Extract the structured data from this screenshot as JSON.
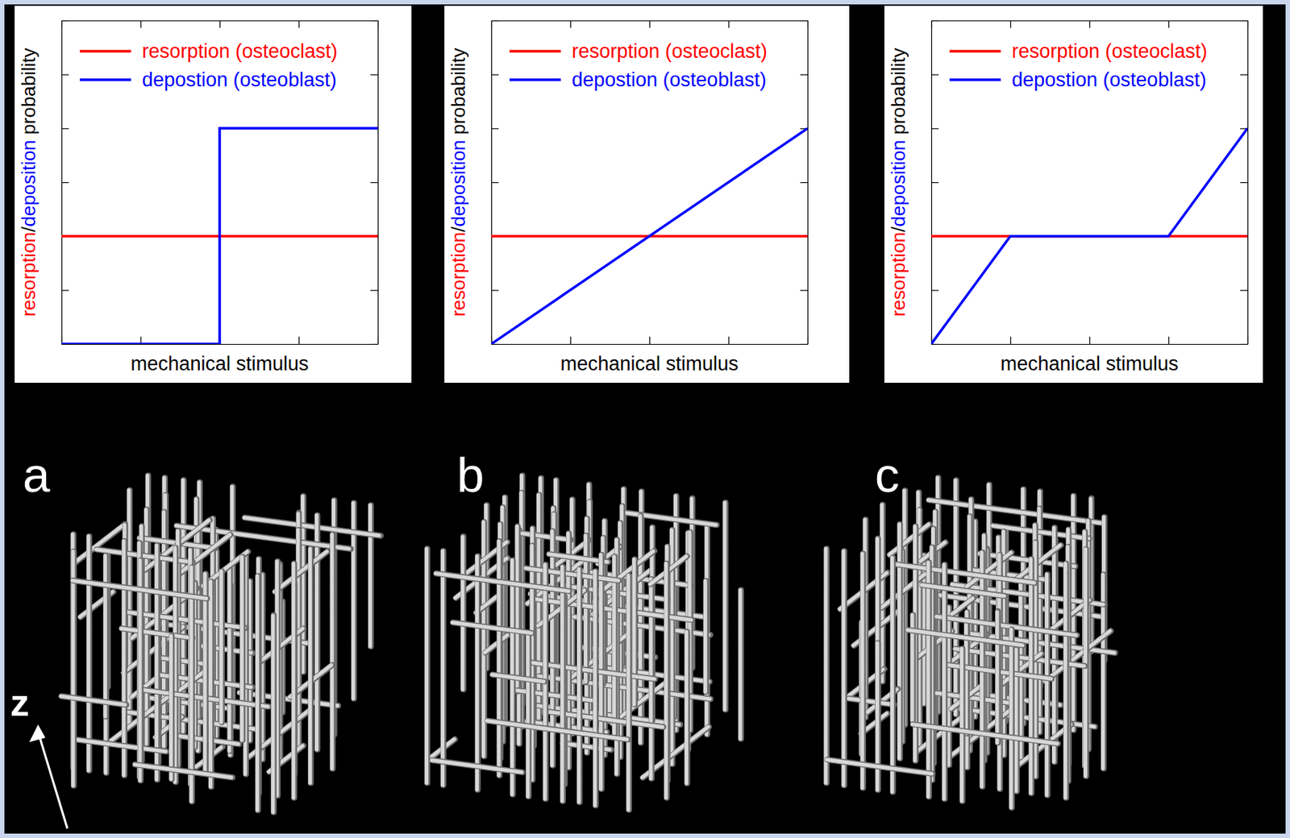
{
  "chart_data": [
    {
      "type": "line",
      "xlabel": "mechanical stimulus",
      "ylabel": "resorption/deposition probability",
      "xlim": [
        0,
        4
      ],
      "ylim": [
        0,
        6
      ],
      "xticks": [
        0,
        1,
        2,
        3,
        4
      ],
      "yticks": [
        0,
        1,
        2,
        3,
        4,
        5,
        6
      ],
      "tick_labels": false,
      "legend": "upper left",
      "series": [
        {
          "name": "resorption (osteoclast)",
          "color": "#ff0000",
          "x": [
            0,
            4
          ],
          "values": [
            2,
            2
          ]
        },
        {
          "name": "depostion (osteoblast)",
          "color": "#0000ff",
          "x": [
            0,
            2,
            2,
            4
          ],
          "values": [
            0,
            0,
            4,
            4
          ]
        }
      ]
    },
    {
      "type": "line",
      "xlabel": "mechanical stimulus",
      "ylabel": "resorption/deposition probability",
      "xlim": [
        0,
        4
      ],
      "ylim": [
        0,
        6
      ],
      "xticks": [
        0,
        1,
        2,
        3,
        4
      ],
      "yticks": [
        0,
        1,
        2,
        3,
        4,
        5,
        6
      ],
      "tick_labels": false,
      "legend": "upper left",
      "series": [
        {
          "name": "resorption (osteoclast)",
          "color": "#ff0000",
          "x": [
            0,
            4
          ],
          "values": [
            2,
            2
          ]
        },
        {
          "name": "depostion (osteoblast)",
          "color": "#0000ff",
          "x": [
            0,
            4
          ],
          "values": [
            0,
            4
          ]
        }
      ]
    },
    {
      "type": "line",
      "xlabel": "mechanical stimulus",
      "ylabel": "resorption/deposition probability",
      "xlim": [
        0,
        4
      ],
      "ylim": [
        0,
        6
      ],
      "xticks": [
        0,
        1,
        2,
        3,
        4
      ],
      "yticks": [
        0,
        1,
        2,
        3,
        4,
        5,
        6
      ],
      "tick_labels": false,
      "legend": "upper left",
      "series": [
        {
          "name": "resorption (osteoclast)",
          "color": "#ff0000",
          "x": [
            0,
            4
          ],
          "values": [
            2,
            2
          ]
        },
        {
          "name": "depostion (osteoblast)",
          "color": "#0000ff",
          "x": [
            0,
            1,
            3,
            4
          ],
          "values": [
            0,
            2,
            2,
            4
          ]
        }
      ]
    }
  ],
  "renders": [
    {
      "label": "a",
      "axis_label": "z"
    },
    {
      "label": "b"
    },
    {
      "label": "c"
    }
  ]
}
